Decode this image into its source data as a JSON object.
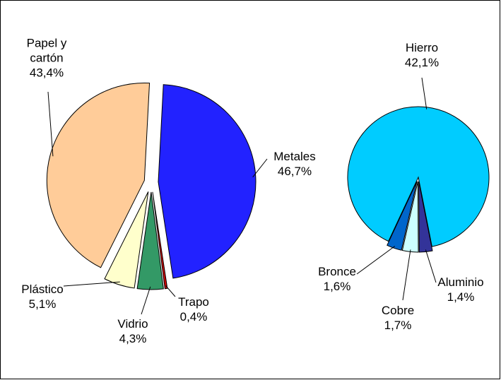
{
  "chart_data": [
    {
      "type": "pie",
      "categories": [
        "Metales",
        "Trapo",
        "Vidrio",
        "Plástico",
        "Papel y cartón"
      ],
      "values": [
        46.7,
        0.4,
        4.3,
        5.1,
        43.4
      ],
      "value_labels": [
        "46,7%",
        "0,4%",
        "4,3%",
        "5,1%",
        "43,4%"
      ],
      "colors": [
        "#2222ff",
        "#cc0000",
        "#339966",
        "#ffffcc",
        "#ffcc99"
      ]
    },
    {
      "type": "pie",
      "categories": [
        "Hierro",
        "Aluminio",
        "Cobre",
        "Bronce"
      ],
      "values": [
        42.1,
        1.4,
        1.7,
        1.6
      ],
      "value_labels": [
        "42,1%",
        "1,4%",
        "1,7%",
        "1,6%"
      ],
      "colors": [
        "#00ccff",
        "#333399",
        "#ccffff",
        "#0066cc"
      ]
    }
  ]
}
